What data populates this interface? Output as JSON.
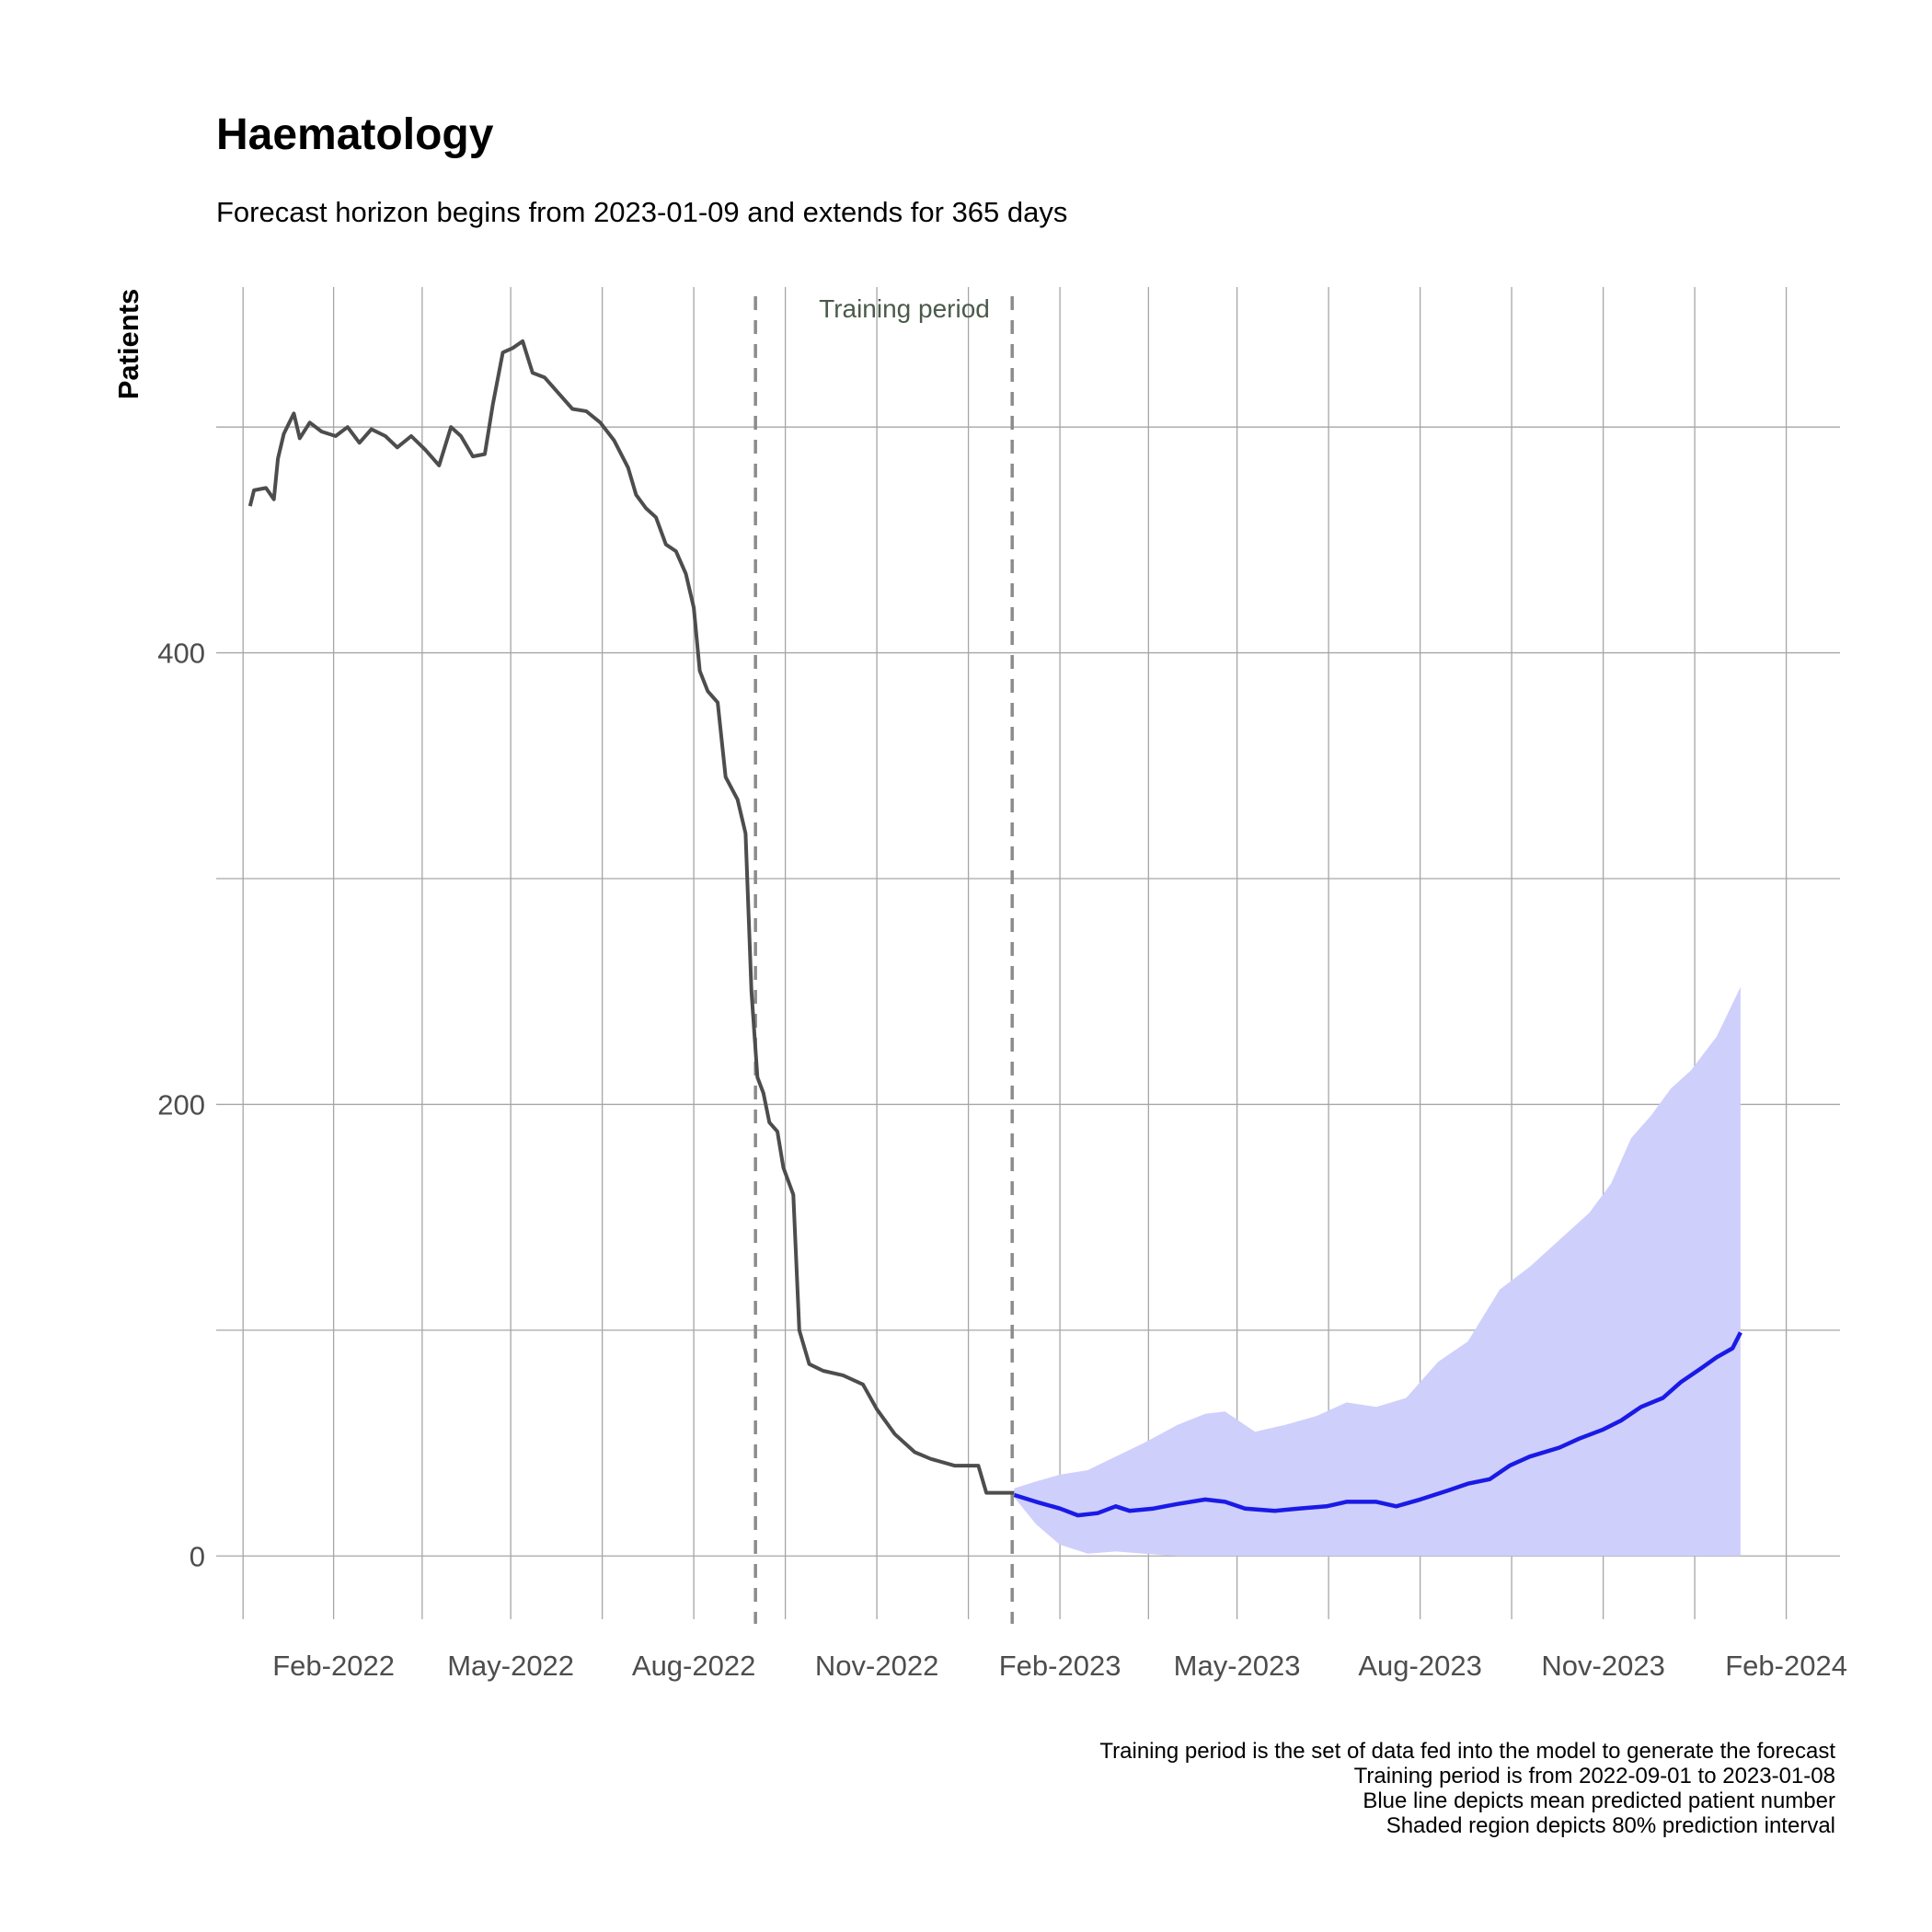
{
  "chart_data": {
    "type": "line",
    "title": "Haematology",
    "subtitle": "Forecast horizon begins from 2023-01-09 and extends for 365 days",
    "ylabel": "Patients",
    "xlabel": "",
    "x_ticks": [
      "Feb-2022",
      "May-2022",
      "Aug-2022",
      "Nov-2022",
      "Feb-2023",
      "May-2023",
      "Aug-2023",
      "Nov-2023",
      "Feb-2024"
    ],
    "y_ticks": [
      "0",
      "200",
      "400"
    ],
    "ylim": [
      -28,
      562
    ],
    "xlim": [
      "2021-12-04",
      "2024-02-28"
    ],
    "grid": true,
    "annotation": "Training period",
    "training_period_bounds": [
      "2022-09-01",
      "2023-01-08"
    ],
    "caption": [
      "Training period is the set of data fed into the model to generate the forecast",
      "Training period is from 2022-09-01 to 2023-01-08",
      "Blue line depicts mean predicted patient number",
      "Shaded region depicts 80% prediction interval"
    ],
    "colors": {
      "observed": "#4d4d4d",
      "forecast": "#1a1ae6",
      "interval": "#cfcffc",
      "training_lines": "#8c8c8c"
    },
    "series": [
      {
        "role": "observed",
        "points": [
          [
            "2021-12-21",
            465
          ],
          [
            "2021-12-23",
            472
          ],
          [
            "2021-12-29",
            473
          ],
          [
            "2022-01-02",
            468
          ],
          [
            "2022-01-04",
            486
          ],
          [
            "2022-01-07",
            497
          ],
          [
            "2022-01-12",
            506
          ],
          [
            "2022-01-15",
            495
          ],
          [
            "2022-01-20",
            502
          ],
          [
            "2022-01-26",
            498
          ],
          [
            "2022-02-02",
            496
          ],
          [
            "2022-02-08",
            500
          ],
          [
            "2022-02-14",
            493
          ],
          [
            "2022-02-20",
            499
          ],
          [
            "2022-02-27",
            496
          ],
          [
            "2022-03-05",
            491
          ],
          [
            "2022-03-12",
            496
          ],
          [
            "2022-03-19",
            490
          ],
          [
            "2022-03-26",
            483
          ],
          [
            "2022-04-01",
            500
          ],
          [
            "2022-04-06",
            496
          ],
          [
            "2022-04-12",
            487
          ],
          [
            "2022-04-18",
            488
          ],
          [
            "2022-04-22",
            510
          ],
          [
            "2022-04-27",
            533
          ],
          [
            "2022-05-02",
            535
          ],
          [
            "2022-05-07",
            538
          ],
          [
            "2022-05-12",
            524
          ],
          [
            "2022-05-18",
            522
          ],
          [
            "2022-05-25",
            515
          ],
          [
            "2022-06-01",
            508
          ],
          [
            "2022-06-08",
            507
          ],
          [
            "2022-06-15",
            502
          ],
          [
            "2022-06-22",
            494
          ],
          [
            "2022-06-29",
            482
          ],
          [
            "2022-07-03",
            470
          ],
          [
            "2022-07-08",
            464
          ],
          [
            "2022-07-13",
            460
          ],
          [
            "2022-07-18",
            448
          ],
          [
            "2022-07-23",
            445
          ],
          [
            "2022-07-28",
            435
          ],
          [
            "2022-08-01",
            420
          ],
          [
            "2022-08-04",
            392
          ],
          [
            "2022-08-08",
            383
          ],
          [
            "2022-08-13",
            378
          ],
          [
            "2022-08-17",
            345
          ],
          [
            "2022-08-23",
            335
          ],
          [
            "2022-08-27",
            320
          ],
          [
            "2022-08-30",
            250
          ],
          [
            "2022-09-02",
            212
          ],
          [
            "2022-09-05",
            205
          ],
          [
            "2022-09-08",
            192
          ],
          [
            "2022-09-12",
            188
          ],
          [
            "2022-09-15",
            172
          ],
          [
            "2022-09-20",
            160
          ],
          [
            "2022-09-23",
            100
          ],
          [
            "2022-09-28",
            85
          ],
          [
            "2022-10-05",
            82
          ],
          [
            "2022-10-15",
            80
          ],
          [
            "2022-10-25",
            76
          ],
          [
            "2022-11-01",
            65
          ],
          [
            "2022-11-10",
            54
          ],
          [
            "2022-11-20",
            46
          ],
          [
            "2022-11-28",
            43
          ],
          [
            "2022-12-10",
            40
          ],
          [
            "2022-12-22",
            40
          ],
          [
            "2022-12-26",
            28
          ],
          [
            "2023-01-09",
            28
          ]
        ]
      },
      {
        "role": "forecast_mean",
        "points": [
          [
            "2023-01-09",
            27
          ],
          [
            "2023-01-20",
            24
          ],
          [
            "2023-02-01",
            21
          ],
          [
            "2023-02-10",
            18
          ],
          [
            "2023-02-20",
            19
          ],
          [
            "2023-03-01",
            22
          ],
          [
            "2023-03-08",
            20
          ],
          [
            "2023-03-20",
            21
          ],
          [
            "2023-04-01",
            23
          ],
          [
            "2023-04-15",
            25
          ],
          [
            "2023-04-25",
            24
          ],
          [
            "2023-05-05",
            21
          ],
          [
            "2023-05-20",
            20
          ],
          [
            "2023-06-01",
            21
          ],
          [
            "2023-06-15",
            22
          ],
          [
            "2023-06-25",
            24
          ],
          [
            "2023-07-10",
            24
          ],
          [
            "2023-07-20",
            22
          ],
          [
            "2023-08-01",
            25
          ],
          [
            "2023-08-15",
            29
          ],
          [
            "2023-08-25",
            32
          ],
          [
            "2023-09-05",
            34
          ],
          [
            "2023-09-15",
            40
          ],
          [
            "2023-09-25",
            44
          ],
          [
            "2023-10-10",
            48
          ],
          [
            "2023-10-20",
            52
          ],
          [
            "2023-11-01",
            56
          ],
          [
            "2023-11-10",
            60
          ],
          [
            "2023-11-20",
            66
          ],
          [
            "2023-12-01",
            70
          ],
          [
            "2023-12-10",
            77
          ],
          [
            "2023-12-20",
            83
          ],
          [
            "2023-12-28",
            88
          ],
          [
            "2024-01-05",
            92
          ],
          [
            "2024-01-09",
            99
          ]
        ]
      },
      {
        "role": "interval_upper",
        "points": [
          [
            "2023-01-09",
            30
          ],
          [
            "2023-01-20",
            33
          ],
          [
            "2023-02-01",
            36
          ],
          [
            "2023-02-15",
            38
          ],
          [
            "2023-03-01",
            44
          ],
          [
            "2023-03-15",
            50
          ],
          [
            "2023-04-01",
            58
          ],
          [
            "2023-04-15",
            63
          ],
          [
            "2023-04-25",
            64
          ],
          [
            "2023-05-10",
            55
          ],
          [
            "2023-05-25",
            58
          ],
          [
            "2023-06-10",
            62
          ],
          [
            "2023-06-25",
            68
          ],
          [
            "2023-07-10",
            66
          ],
          [
            "2023-07-25",
            70
          ],
          [
            "2023-08-10",
            86
          ],
          [
            "2023-08-25",
            95
          ],
          [
            "2023-09-10",
            118
          ],
          [
            "2023-09-25",
            128
          ],
          [
            "2023-10-10",
            140
          ],
          [
            "2023-10-25",
            152
          ],
          [
            "2023-11-05",
            165
          ],
          [
            "2023-11-15",
            185
          ],
          [
            "2023-11-25",
            195
          ],
          [
            "2023-12-05",
            207
          ],
          [
            "2023-12-15",
            215
          ],
          [
            "2023-12-28",
            230
          ],
          [
            "2024-01-09",
            252
          ]
        ]
      },
      {
        "role": "interval_lower",
        "points": [
          [
            "2023-01-09",
            26
          ],
          [
            "2023-01-20",
            14
          ],
          [
            "2023-02-01",
            5
          ],
          [
            "2023-02-15",
            1
          ],
          [
            "2023-03-01",
            2
          ],
          [
            "2023-03-15",
            1
          ],
          [
            "2023-04-01",
            0
          ],
          [
            "2024-01-09",
            0
          ]
        ]
      }
    ]
  }
}
